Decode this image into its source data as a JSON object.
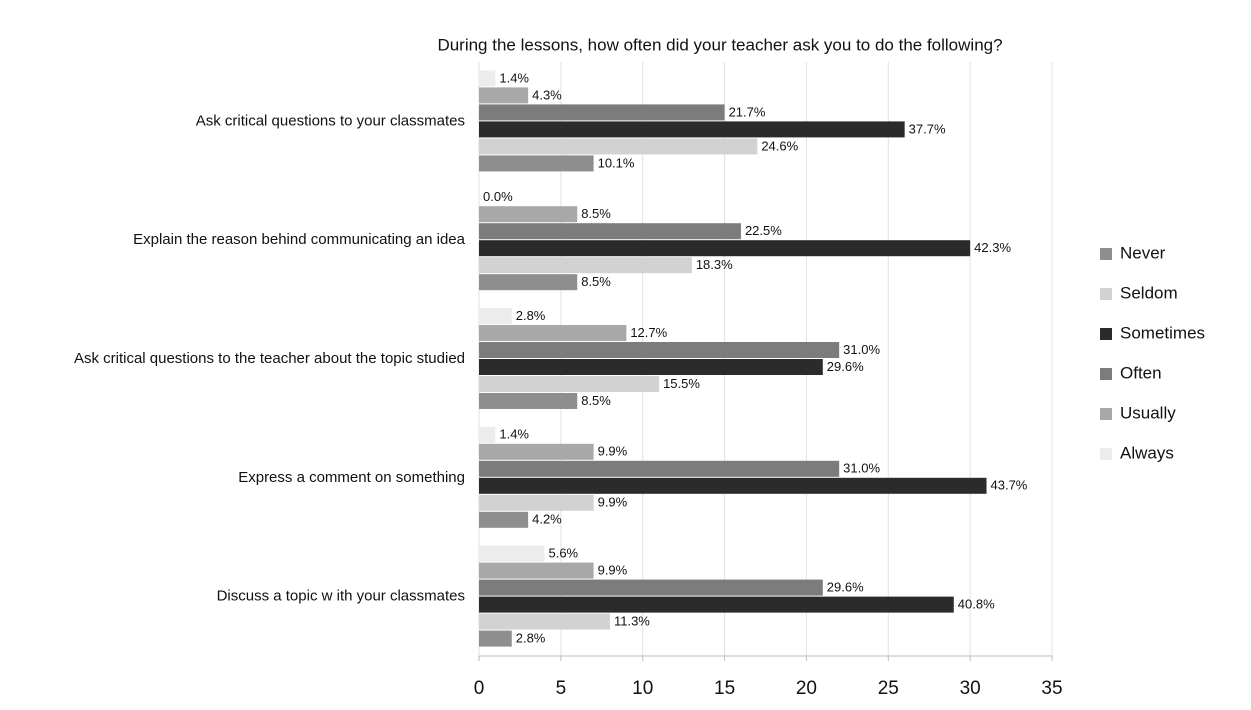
{
  "chart_data": {
    "type": "hbar",
    "title": "During the lessons, how often did your teacher ask you to do the following?",
    "categories": [
      "Ask critical questions to your classmates",
      "Explain the reason behind communicating an idea",
      "Ask critical questions to the teacher about the topic studied",
      "Express a comment on something",
      "Discuss a topic w ith your classmates"
    ],
    "series": [
      {
        "name": "Always",
        "color": "#ececec",
        "values": [
          1,
          0,
          2,
          1,
          4
        ],
        "value_labels": [
          "1.4%",
          "0.0%",
          "2.8%",
          "1.4%",
          "5.6%"
        ]
      },
      {
        "name": "Usually",
        "color": "#a8a8a8",
        "values": [
          3,
          6,
          9,
          7,
          7
        ],
        "value_labels": [
          "4.3%",
          "8.5%",
          "12.7%",
          "9.9%",
          "9.9%"
        ]
      },
      {
        "name": "Often",
        "color": "#7c7c7c",
        "values": [
          15,
          16,
          22,
          22,
          21
        ],
        "value_labels": [
          "21.7%",
          "22.5%",
          "31.0%",
          "31.0%",
          "29.6%"
        ]
      },
      {
        "name": "Sometimes",
        "color": "#2b2b2b",
        "values": [
          26,
          30,
          21,
          31,
          29
        ],
        "value_labels": [
          "37.7%",
          "42.3%",
          "29.6%",
          "43.7%",
          "40.8%"
        ]
      },
      {
        "name": "Seldom",
        "color": "#d2d2d2",
        "values": [
          17,
          13,
          11,
          7,
          8
        ],
        "value_labels": [
          "24.6%",
          "18.3%",
          "15.5%",
          "9.9%",
          "11.3%"
        ]
      },
      {
        "name": "Never",
        "color": "#8e8e8e",
        "values": [
          7,
          6,
          6,
          3,
          2
        ],
        "value_labels": [
          "10.1%",
          "8.5%",
          "8.5%",
          "4.2%",
          "2.8%"
        ]
      }
    ],
    "legend_order": [
      "Never",
      "Seldom",
      "Sometimes",
      "Often",
      "Usually",
      "Always"
    ],
    "xlim": [
      0,
      35
    ],
    "xticks": [
      0,
      5,
      10,
      15,
      20,
      25,
      30,
      35
    ],
    "grid": true
  }
}
